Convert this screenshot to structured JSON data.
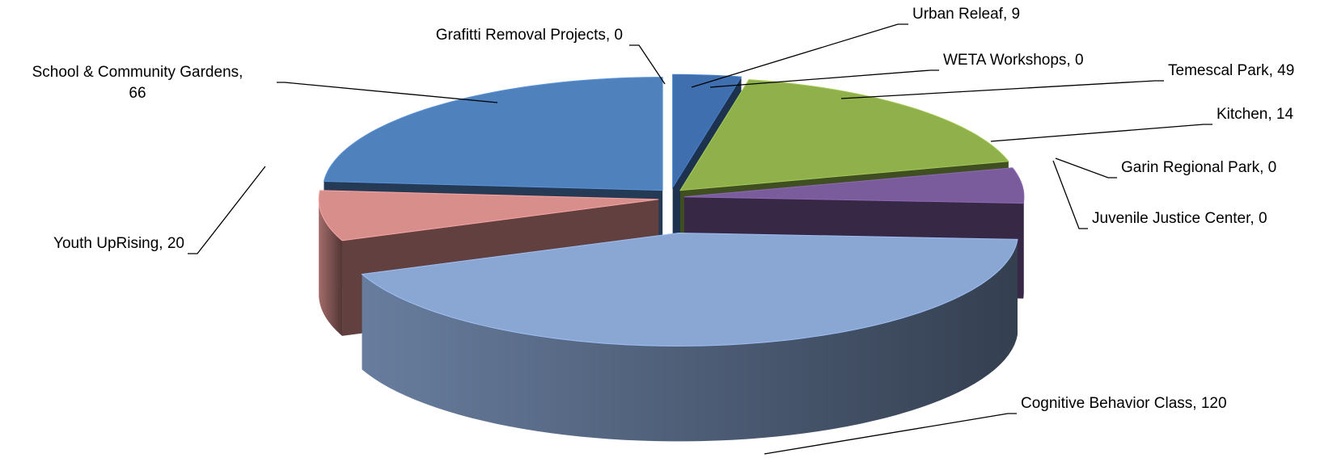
{
  "chart_data": {
    "type": "pie",
    "values": [
      9,
      0,
      49,
      14,
      0,
      0,
      120,
      20,
      66,
      0
    ],
    "value_labels": [
      "Urban Releaf, 9",
      "WETA Workshops, 0",
      "Temescal Park, 49",
      "Kitchen, 14",
      "Garin Regional Park, 0",
      "Juvenile Justice Center, 0",
      "Cognitive Behavior Class, 120",
      "Youth UpRising, 20",
      "School & Community Gardens,\n66",
      "Grafitti Removal Projects, 0"
    ],
    "colors": [
      "#3f6fae",
      "#c0504d",
      "#8fb04a",
      "#7a5b9c",
      "#4bacc6",
      "#d9782a",
      "#8aa6d3",
      "#d88f8c",
      "#4f81bd",
      "#ffffff"
    ],
    "three_d": true
  }
}
